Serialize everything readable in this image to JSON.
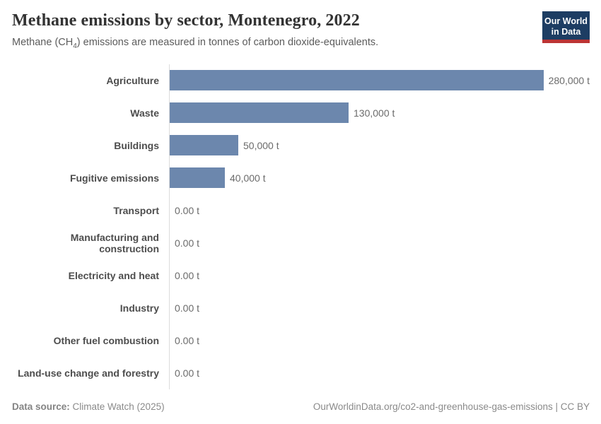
{
  "header": {
    "title": "Methane emissions by sector, Montenegro, 2022",
    "subtitle": {
      "pre": "Methane (CH",
      "sub": "4",
      "post": ") emissions are measured in tonnes of carbon dioxide-equivalents."
    },
    "logo": {
      "line1": "Our World",
      "line2": "in Data"
    }
  },
  "chart_data": {
    "type": "bar",
    "orientation": "horizontal",
    "title": "Methane emissions by sector, Montenegro, 2022",
    "unit": "t",
    "categories": [
      "Agriculture",
      "Waste",
      "Buildings",
      "Fugitive emissions",
      "Transport",
      "Manufacturing and construction",
      "Electricity and heat",
      "Industry",
      "Other fuel combustion",
      "Land-use change and forestry"
    ],
    "values": [
      280000,
      130000,
      50000,
      40000,
      0,
      0,
      0,
      0,
      0,
      0
    ],
    "value_labels": [
      "280,000 t",
      "130,000 t",
      "50,000 t",
      "40,000 t",
      "0.00 t",
      "0.00 t",
      "0.00 t",
      "0.00 t",
      "0.00 t",
      "0.00 t"
    ],
    "xlim": [
      0,
      280000
    ],
    "grid": false,
    "legend": "none",
    "bar_color": "#6c87ad"
  },
  "footer": {
    "datasource_label": "Data source:",
    "datasource_value": " Climate Watch (2025)",
    "credit": "OurWorldinData.org/co2-and-greenhouse-gas-emissions | CC BY"
  },
  "colors": {
    "bar": "#6c87ad",
    "logo_navy": "#1d3d63",
    "logo_red": "#bc3434",
    "axis_line": "#dcdcdc"
  }
}
